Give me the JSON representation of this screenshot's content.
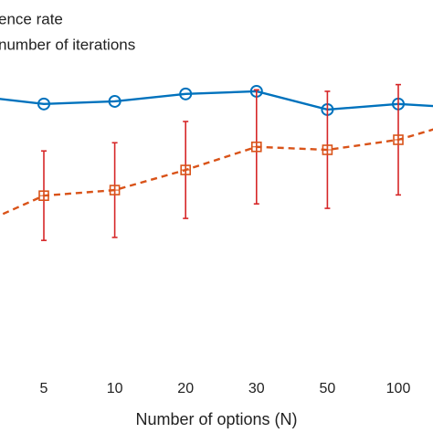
{
  "chart_data": {
    "type": "line",
    "x_label": "Number of options (N)",
    "categories": [
      null,
      "5",
      "10",
      "20",
      "30",
      "50",
      "100",
      null
    ],
    "ylim": [
      0,
      100
    ],
    "series": [
      {
        "name": "ence rate",
        "color": "#0072bd",
        "marker": "circle",
        "dashed": false,
        "values": [
          74.3,
          72.1,
          72.8,
          74.8,
          75.5,
          70.6,
          72.1,
          71.0
        ]
      },
      {
        "name": "number of iterations",
        "color": "#d95319",
        "marker": "square",
        "dashed": true,
        "values": [
          39.0,
          47.5,
          49.0,
          54.4,
          60.6,
          59.8,
          62.5,
          68.1
        ],
        "errors": [
          null,
          12.0,
          12.7,
          13.0,
          15.3,
          15.7,
          14.8,
          null
        ],
        "error_color": "#d62728"
      }
    ]
  }
}
